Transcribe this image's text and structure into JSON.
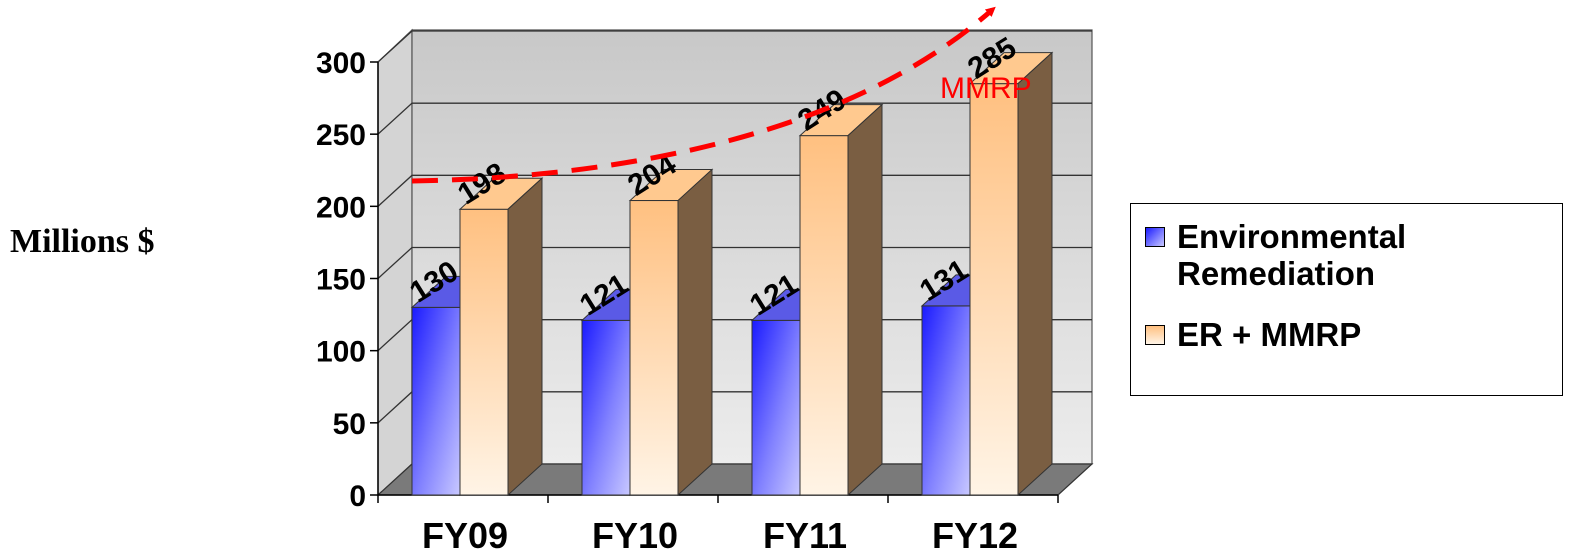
{
  "chart_data": {
    "type": "bar",
    "title": "",
    "xlabel": "",
    "ylabel": "Millions $",
    "categories": [
      "FY09",
      "FY10",
      "FY11",
      "FY12"
    ],
    "series": [
      {
        "name": "Environmental Remediation",
        "values": [
          130,
          121,
          121,
          131
        ],
        "color": "#6b6bff"
      },
      {
        "name": "ER + MMRP",
        "values": [
          198,
          204,
          249,
          285
        ],
        "color": "#ffc890"
      }
    ],
    "ylim": [
      0,
      300
    ],
    "yticks": [
      "0",
      "50",
      "100",
      "150",
      "200",
      "250",
      "300"
    ],
    "grid": true,
    "legend": "right",
    "style": "3d-clustered-column",
    "annotation": {
      "text": "MMRP",
      "color": "#ff0000",
      "arrow": "dashed-curve"
    }
  },
  "legend": {
    "items": [
      {
        "label": "Environmental Remediation",
        "swatch": "blue-gradient"
      },
      {
        "label": "ER + MMRP",
        "swatch": "peach-gradient"
      }
    ]
  }
}
